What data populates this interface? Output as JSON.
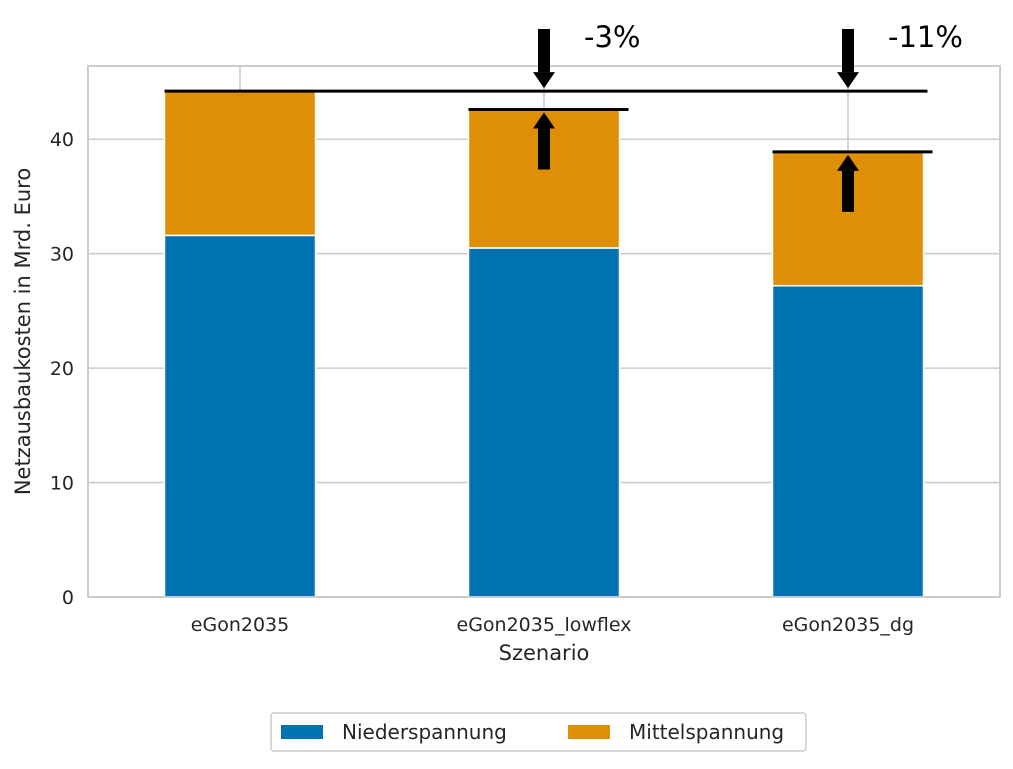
{
  "chart_data": {
    "type": "bar",
    "stacked": true,
    "xlabel": "Szenario",
    "ylabel": "Netzausbaukosten in Mrd. Euro",
    "ylim": [
      0,
      46.4
    ],
    "yticks": [
      0,
      10,
      20,
      30,
      40
    ],
    "categories": [
      "eGon2035",
      "eGon2035_lowflex",
      "eGon2035_dg"
    ],
    "series": [
      {
        "name": "Niederspannung",
        "color": "#0173b2",
        "values": [
          31.6,
          30.5,
          27.2
        ]
      },
      {
        "name": "Mittelspannung",
        "color": "#de8f05",
        "values": [
          12.6,
          12.1,
          11.7
        ]
      }
    ],
    "totals": [
      44.2,
      42.6,
      38.9
    ],
    "reference_total": 44.2,
    "annotations": [
      {
        "category": "eGon2035_lowflex",
        "label": "-3%",
        "from": 44.2,
        "to": 42.6
      },
      {
        "category": "eGon2035_dg",
        "label": "-11%",
        "from": 44.2,
        "to": 38.9
      }
    ],
    "grid": true,
    "legend": {
      "position": "bottom-center",
      "columns": 2
    }
  }
}
